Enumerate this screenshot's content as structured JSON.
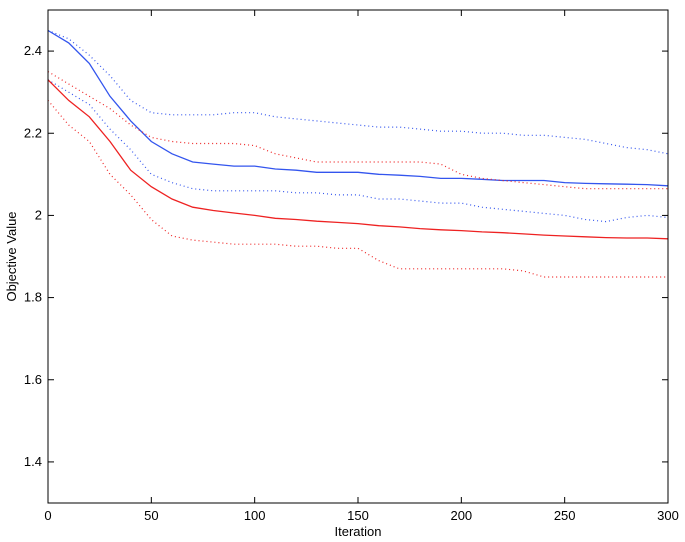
{
  "chart_data": {
    "type": "line",
    "title": "",
    "xlabel": "Iteration",
    "ylabel": "Objective Value",
    "xlim": [
      0,
      300
    ],
    "ylim": [
      1.3,
      2.5
    ],
    "xticks": [
      0,
      50,
      100,
      150,
      200,
      250,
      300
    ],
    "yticks": [
      1.4,
      1.6,
      1.8,
      2.0,
      2.2,
      2.4
    ],
    "ytick_labels": [
      "1.4",
      "1.6",
      "1.8",
      "2",
      "2.2",
      "2.4"
    ],
    "grid": false,
    "legend": "none",
    "series": [
      {
        "color": "#3355ee",
        "style": "solid",
        "x": [
          0,
          10,
          20,
          30,
          40,
          50,
          60,
          70,
          80,
          90,
          100,
          110,
          120,
          130,
          140,
          150,
          160,
          170,
          180,
          190,
          200,
          210,
          220,
          230,
          240,
          250,
          260,
          270,
          280,
          290,
          300
        ],
        "values": [
          2.45,
          2.42,
          2.37,
          2.29,
          2.23,
          2.18,
          2.15,
          2.13,
          2.125,
          2.12,
          2.12,
          2.113,
          2.11,
          2.105,
          2.105,
          2.105,
          2.1,
          2.098,
          2.095,
          2.09,
          2.09,
          2.088,
          2.085,
          2.085,
          2.085,
          2.08,
          2.078,
          2.077,
          2.076,
          2.075,
          2.072
        ]
      },
      {
        "color": "#3355ee",
        "style": "dotted",
        "x": [
          0,
          10,
          20,
          30,
          40,
          50,
          60,
          70,
          80,
          90,
          100,
          110,
          120,
          130,
          140,
          150,
          160,
          170,
          180,
          190,
          200,
          210,
          220,
          230,
          240,
          250,
          260,
          270,
          280,
          290,
          300
        ],
        "values": [
          2.45,
          2.43,
          2.39,
          2.34,
          2.28,
          2.25,
          2.245,
          2.245,
          2.245,
          2.25,
          2.25,
          2.24,
          2.235,
          2.23,
          2.225,
          2.22,
          2.215,
          2.215,
          2.21,
          2.205,
          2.205,
          2.2,
          2.2,
          2.195,
          2.195,
          2.19,
          2.185,
          2.175,
          2.165,
          2.16,
          2.15
        ]
      },
      {
        "color": "#3355ee",
        "style": "dotted",
        "x": [
          0,
          10,
          20,
          30,
          40,
          50,
          60,
          70,
          80,
          90,
          100,
          110,
          120,
          130,
          140,
          150,
          160,
          170,
          180,
          190,
          200,
          210,
          220,
          230,
          240,
          250,
          260,
          270,
          280,
          290,
          300
        ],
        "values": [
          2.33,
          2.3,
          2.27,
          2.21,
          2.16,
          2.1,
          2.08,
          2.065,
          2.06,
          2.06,
          2.06,
          2.06,
          2.055,
          2.055,
          2.05,
          2.05,
          2.04,
          2.04,
          2.035,
          2.03,
          2.03,
          2.02,
          2.015,
          2.01,
          2.005,
          2.0,
          1.99,
          1.985,
          1.995,
          2.0,
          1.995
        ]
      },
      {
        "color": "#ee2222",
        "style": "solid",
        "x": [
          0,
          10,
          20,
          30,
          40,
          50,
          60,
          70,
          80,
          90,
          100,
          110,
          120,
          130,
          140,
          150,
          160,
          170,
          180,
          190,
          200,
          210,
          220,
          230,
          240,
          250,
          260,
          270,
          280,
          290,
          300
        ],
        "values": [
          2.33,
          2.28,
          2.24,
          2.18,
          2.11,
          2.07,
          2.04,
          2.02,
          2.012,
          2.006,
          2.0,
          1.993,
          1.99,
          1.986,
          1.983,
          1.98,
          1.975,
          1.972,
          1.968,
          1.965,
          1.963,
          1.96,
          1.958,
          1.955,
          1.952,
          1.95,
          1.948,
          1.946,
          1.945,
          1.945,
          1.943
        ]
      },
      {
        "color": "#ee2222",
        "style": "dotted",
        "x": [
          0,
          10,
          20,
          30,
          40,
          50,
          60,
          70,
          80,
          90,
          100,
          110,
          120,
          130,
          140,
          150,
          160,
          170,
          180,
          190,
          200,
          210,
          220,
          230,
          240,
          250,
          260,
          270,
          280,
          290,
          300
        ],
        "values": [
          2.35,
          2.32,
          2.29,
          2.26,
          2.22,
          2.19,
          2.18,
          2.175,
          2.175,
          2.175,
          2.17,
          2.15,
          2.14,
          2.13,
          2.13,
          2.13,
          2.13,
          2.13,
          2.13,
          2.125,
          2.1,
          2.09,
          2.085,
          2.08,
          2.075,
          2.07,
          2.065,
          2.065,
          2.065,
          2.065,
          2.065
        ]
      },
      {
        "color": "#ee2222",
        "style": "dotted",
        "x": [
          0,
          10,
          20,
          30,
          40,
          50,
          60,
          70,
          80,
          90,
          100,
          110,
          120,
          130,
          140,
          150,
          160,
          170,
          180,
          190,
          200,
          210,
          220,
          230,
          240,
          250,
          260,
          270,
          280,
          290,
          300
        ],
        "values": [
          2.28,
          2.22,
          2.18,
          2.1,
          2.05,
          1.99,
          1.95,
          1.94,
          1.935,
          1.93,
          1.93,
          1.93,
          1.925,
          1.925,
          1.92,
          1.92,
          1.89,
          1.87,
          1.87,
          1.87,
          1.87,
          1.87,
          1.87,
          1.865,
          1.85,
          1.85,
          1.85,
          1.85,
          1.85,
          1.85,
          1.85
        ]
      }
    ]
  }
}
